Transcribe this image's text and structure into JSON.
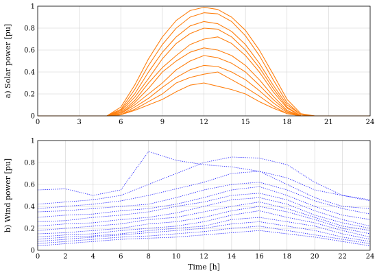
{
  "chart_data": [
    {
      "type": "line",
      "panel": "top",
      "ylabel": "a) Solar power [pu]",
      "xlabel": "",
      "xlim": [
        0,
        24
      ],
      "ylim": [
        0,
        1
      ],
      "x_ticks": [
        "0",
        "3",
        "6",
        "9",
        "12",
        "15",
        "18",
        "21",
        "24"
      ],
      "y_ticks": [
        "0",
        "0.2",
        "0.4",
        "0.6",
        "0.8",
        "1"
      ],
      "grid": true,
      "line_color": "#ff7f0e",
      "line_style": "solid",
      "x": [
        0,
        1,
        2,
        3,
        4,
        5,
        6,
        7,
        8,
        9,
        10,
        11,
        12,
        13,
        14,
        15,
        16,
        17,
        18,
        19,
        20,
        21,
        22,
        23,
        24
      ],
      "series": [
        {
          "values": [
            0,
            0,
            0,
            0,
            0,
            0,
            0.08,
            0.28,
            0.52,
            0.72,
            0.87,
            0.96,
            0.99,
            0.97,
            0.9,
            0.78,
            0.6,
            0.38,
            0.15,
            0.02,
            0,
            0,
            0,
            0,
            0
          ]
        },
        {
          "values": [
            0,
            0,
            0,
            0,
            0,
            0,
            0.06,
            0.24,
            0.46,
            0.65,
            0.8,
            0.9,
            0.94,
            0.93,
            0.86,
            0.73,
            0.55,
            0.33,
            0.12,
            0.01,
            0,
            0,
            0,
            0,
            0
          ]
        },
        {
          "values": [
            0,
            0,
            0,
            0,
            0,
            0,
            0.05,
            0.2,
            0.4,
            0.58,
            0.72,
            0.82,
            0.86,
            0.84,
            0.77,
            0.65,
            0.48,
            0.28,
            0.1,
            0.01,
            0,
            0,
            0,
            0,
            0
          ]
        },
        {
          "values": [
            0,
            0,
            0,
            0,
            0,
            0,
            0.04,
            0.17,
            0.34,
            0.52,
            0.66,
            0.75,
            0.8,
            0.79,
            0.72,
            0.6,
            0.44,
            0.25,
            0.08,
            0,
            0,
            0,
            0,
            0,
            0
          ]
        },
        {
          "values": [
            0,
            0,
            0,
            0,
            0,
            0,
            0.03,
            0.14,
            0.3,
            0.44,
            0.55,
            0.65,
            0.7,
            0.72,
            0.66,
            0.55,
            0.4,
            0.22,
            0.07,
            0,
            0,
            0,
            0,
            0,
            0
          ]
        },
        {
          "values": [
            0,
            0,
            0,
            0,
            0,
            0,
            0.02,
            0.12,
            0.25,
            0.4,
            0.5,
            0.58,
            0.62,
            0.6,
            0.55,
            0.46,
            0.33,
            0.18,
            0.05,
            0,
            0,
            0,
            0,
            0,
            0
          ]
        },
        {
          "values": [
            0,
            0,
            0,
            0,
            0,
            0,
            0.02,
            0.1,
            0.2,
            0.3,
            0.42,
            0.5,
            0.55,
            0.53,
            0.48,
            0.4,
            0.28,
            0.15,
            0.04,
            0,
            0,
            0,
            0,
            0,
            0
          ]
        },
        {
          "values": [
            0,
            0,
            0,
            0,
            0,
            0,
            0.01,
            0.08,
            0.16,
            0.26,
            0.35,
            0.42,
            0.46,
            0.45,
            0.4,
            0.33,
            0.23,
            0.12,
            0.03,
            0,
            0,
            0,
            0,
            0,
            0
          ]
        },
        {
          "values": [
            0,
            0,
            0,
            0,
            0,
            0,
            0.01,
            0.06,
            0.13,
            0.2,
            0.3,
            0.35,
            0.38,
            0.4,
            0.33,
            0.26,
            0.18,
            0.09,
            0.02,
            0,
            0,
            0,
            0,
            0,
            0
          ]
        },
        {
          "values": [
            0,
            0,
            0,
            0,
            0,
            0,
            0.01,
            0.05,
            0.1,
            0.15,
            0.22,
            0.28,
            0.3,
            0.27,
            0.24,
            0.2,
            0.13,
            0.07,
            0.02,
            0,
            0,
            0,
            0,
            0,
            0
          ]
        }
      ]
    },
    {
      "type": "line",
      "panel": "bottom",
      "ylabel": "b) Wind power [pu]",
      "xlabel": "Time [h]",
      "xlim": [
        0,
        24
      ],
      "ylim": [
        0,
        1
      ],
      "x_ticks": [
        "0",
        "2",
        "4",
        "6",
        "8",
        "10",
        "12",
        "14",
        "16",
        "18",
        "20",
        "22",
        "24"
      ],
      "y_ticks": [
        "0",
        "0.2",
        "0.4",
        "0.6",
        "0.8",
        "1"
      ],
      "grid": true,
      "line_color": "#1f1fff",
      "line_style": "dotted",
      "x": [
        0,
        2,
        4,
        6,
        8,
        10,
        12,
        14,
        16,
        18,
        20,
        22,
        24
      ],
      "series": [
        {
          "values": [
            0.55,
            0.56,
            0.5,
            0.55,
            0.9,
            0.82,
            0.78,
            0.76,
            0.72,
            0.6,
            0.48,
            0.4,
            0.38
          ]
        },
        {
          "values": [
            0.42,
            0.44,
            0.46,
            0.5,
            0.6,
            0.7,
            0.8,
            0.85,
            0.84,
            0.78,
            0.62,
            0.5,
            0.45
          ]
        },
        {
          "values": [
            0.38,
            0.4,
            0.42,
            0.45,
            0.5,
            0.56,
            0.62,
            0.7,
            0.72,
            0.66,
            0.55,
            0.5,
            0.46
          ]
        },
        {
          "values": [
            0.35,
            0.36,
            0.38,
            0.4,
            0.42,
            0.48,
            0.55,
            0.6,
            0.62,
            0.55,
            0.45,
            0.38,
            0.33
          ]
        },
        {
          "values": [
            0.3,
            0.32,
            0.33,
            0.36,
            0.38,
            0.42,
            0.48,
            0.55,
            0.58,
            0.5,
            0.4,
            0.32,
            0.28
          ]
        },
        {
          "values": [
            0.26,
            0.27,
            0.3,
            0.32,
            0.35,
            0.4,
            0.44,
            0.5,
            0.52,
            0.46,
            0.36,
            0.28,
            0.22
          ]
        },
        {
          "values": [
            0.22,
            0.24,
            0.25,
            0.28,
            0.3,
            0.34,
            0.4,
            0.46,
            0.48,
            0.42,
            0.32,
            0.25,
            0.2
          ]
        },
        {
          "values": [
            0.18,
            0.2,
            0.22,
            0.24,
            0.28,
            0.3,
            0.35,
            0.4,
            0.44,
            0.38,
            0.3,
            0.22,
            0.18
          ]
        },
        {
          "values": [
            0.15,
            0.16,
            0.18,
            0.2,
            0.24,
            0.26,
            0.3,
            0.36,
            0.4,
            0.35,
            0.28,
            0.2,
            0.15
          ]
        },
        {
          "values": [
            0.12,
            0.14,
            0.15,
            0.18,
            0.2,
            0.22,
            0.26,
            0.32,
            0.36,
            0.3,
            0.25,
            0.18,
            0.12
          ]
        },
        {
          "values": [
            0.1,
            0.12,
            0.13,
            0.15,
            0.18,
            0.2,
            0.22,
            0.28,
            0.3,
            0.26,
            0.22,
            0.15,
            0.1
          ]
        },
        {
          "values": [
            0.08,
            0.1,
            0.12,
            0.14,
            0.16,
            0.18,
            0.2,
            0.24,
            0.26,
            0.22,
            0.18,
            0.12,
            0.08
          ]
        },
        {
          "values": [
            0.06,
            0.08,
            0.1,
            0.12,
            0.13,
            0.15,
            0.17,
            0.2,
            0.22,
            0.18,
            0.14,
            0.1,
            0.06
          ]
        },
        {
          "values": [
            0.04,
            0.06,
            0.08,
            0.1,
            0.11,
            0.12,
            0.14,
            0.16,
            0.18,
            0.15,
            0.12,
            0.08,
            0.04
          ]
        }
      ]
    }
  ]
}
